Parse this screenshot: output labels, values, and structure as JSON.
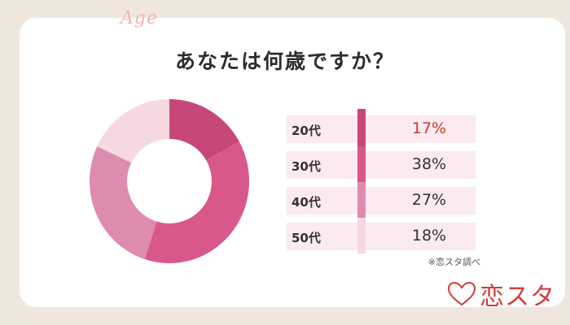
{
  "decor_word": "Age",
  "source_note": "※恋スタ調べ",
  "logo_text": "恋スタ",
  "colors": {
    "background": "#efe7de",
    "card": "#ffffff",
    "row_bg": "#fbeaf0",
    "highlight_text": "#cc3a2a"
  },
  "chart_data": {
    "type": "pie",
    "donut": true,
    "title": "あなたは何歳ですか？",
    "categories": [
      "20代",
      "30代",
      "40代",
      "50代"
    ],
    "values": [
      17,
      38,
      27,
      18
    ],
    "labels": [
      "17%",
      "38%",
      "27%",
      "18%"
    ],
    "unit": "%",
    "colors": [
      "#c8477a",
      "#d9588b",
      "#dd8cb0",
      "#f6d8e1"
    ],
    "highlight_index": 0
  }
}
